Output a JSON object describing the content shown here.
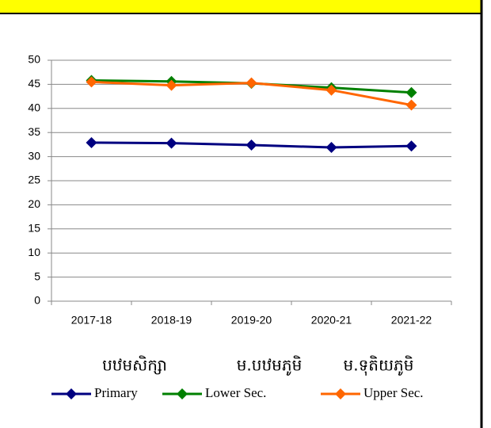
{
  "chart_data": {
    "type": "line",
    "categories": [
      "2017-18",
      "2018-19",
      "2019-20",
      "2020-21",
      "2021-22"
    ],
    "series": [
      {
        "name": "Primary",
        "local_name": "បឋមសិក្សា",
        "color": "#000080",
        "values": [
          32.9,
          32.8,
          32.4,
          31.9,
          32.2
        ]
      },
      {
        "name": "Lower Sec.",
        "local_name": "ម.បឋមភូមិ",
        "color": "#008000",
        "values": [
          45.8,
          45.6,
          45.2,
          44.3,
          43.3
        ]
      },
      {
        "name": "Upper Sec.",
        "local_name": "ម.ទុតិយភូមិ",
        "color": "#ff6600",
        "values": [
          45.5,
          44.8,
          45.3,
          43.8,
          40.7
        ]
      }
    ],
    "ylim": [
      0,
      50
    ],
    "yticks": [
      0,
      5,
      10,
      15,
      20,
      25,
      30,
      35,
      40,
      45,
      50
    ],
    "grid": true
  }
}
